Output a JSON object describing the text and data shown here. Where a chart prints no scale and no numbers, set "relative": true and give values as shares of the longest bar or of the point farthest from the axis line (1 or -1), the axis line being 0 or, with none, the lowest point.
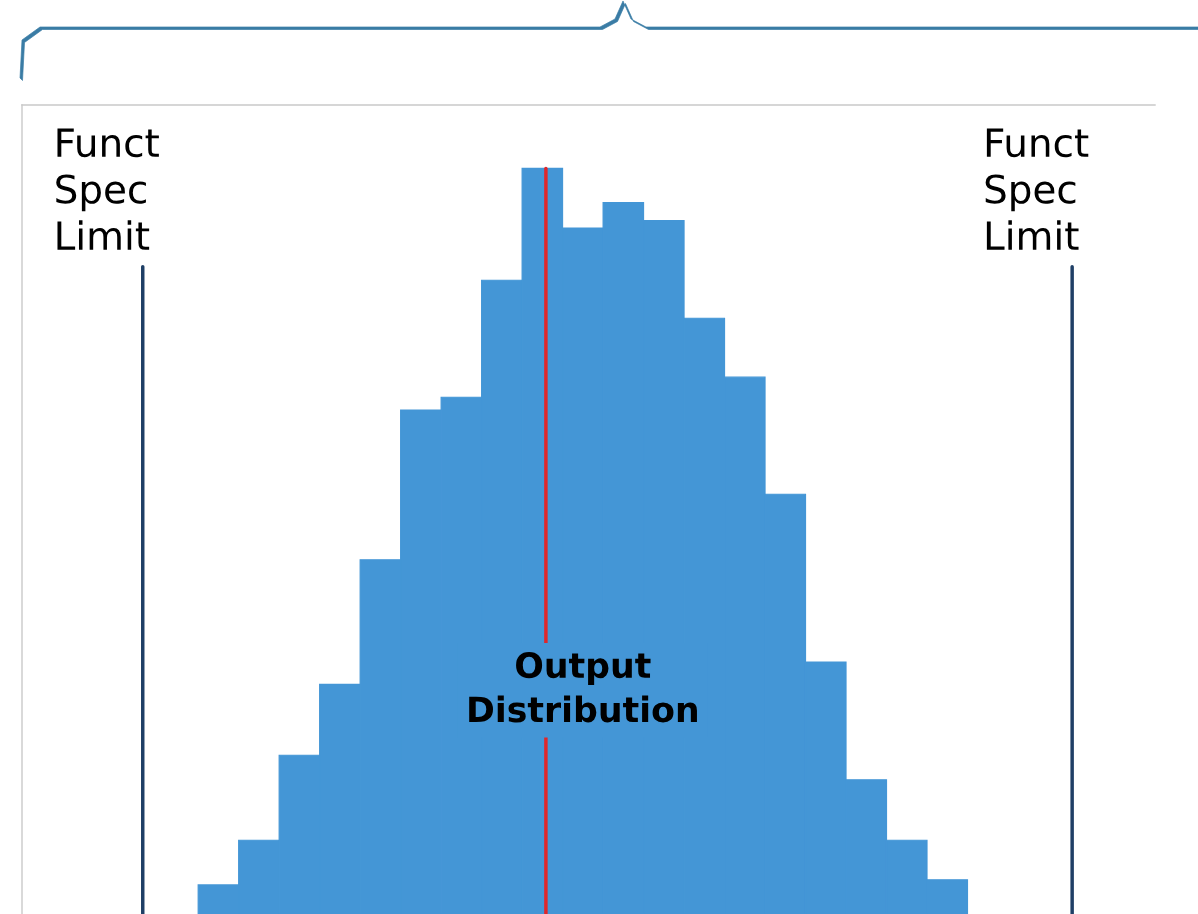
{
  "chart_data": {
    "type": "bar",
    "relative": true,
    "categories": [
      null,
      null,
      null,
      null,
      null,
      null,
      null,
      null,
      null,
      null,
      null,
      null,
      null,
      null,
      null,
      null,
      null,
      null,
      null
    ],
    "values": [
      0.039,
      0.099,
      0.213,
      0.308,
      0.475,
      0.676,
      0.693,
      0.85,
      1,
      0.92,
      0.954,
      0.93,
      0.799,
      0.72,
      0.563,
      0.338,
      0.18,
      0.099,
      0.046
    ],
    "color": "#4496d6",
    "annotations": [
      "Funct\nSpec\nLimit",
      "Funct\nSpec\nLimit",
      "Output\nDistribution"
    ]
  }
}
